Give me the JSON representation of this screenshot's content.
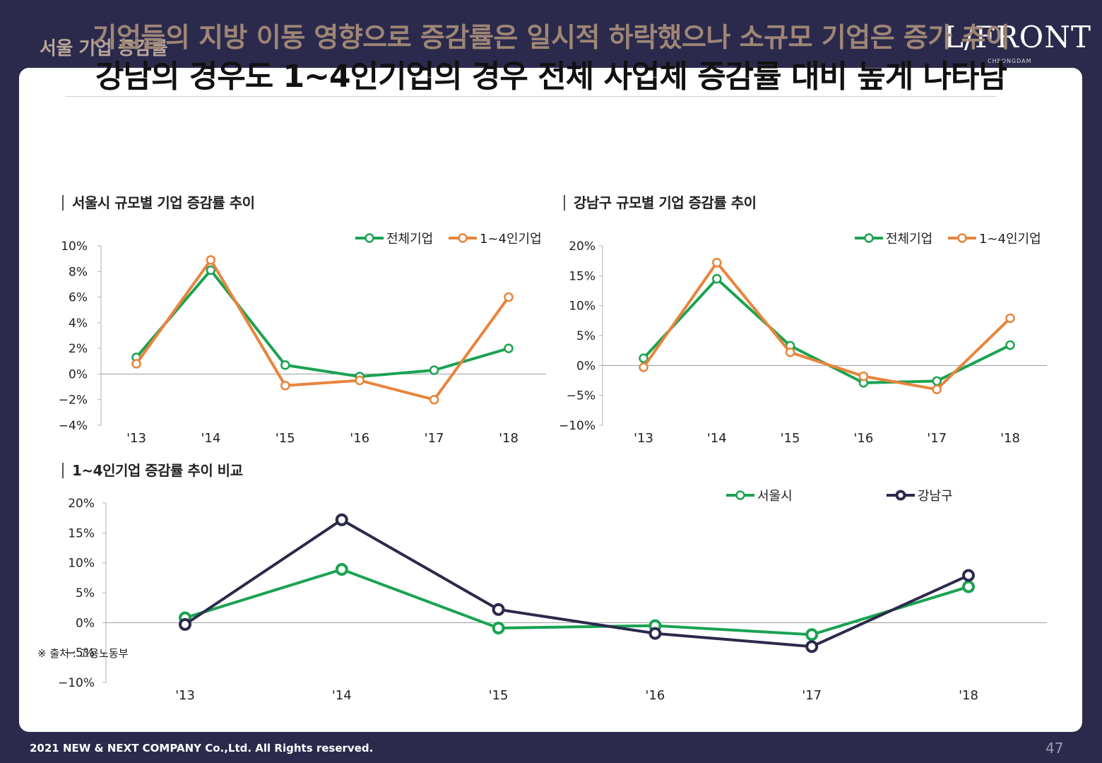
{
  "header": {
    "title": "서울 기업 증감률",
    "logo_text": "L/FRONT",
    "logo_sub": "CHEONGDAM"
  },
  "headline": {
    "sub": "기업들의 지방 이동 영향으로 증감률은 일시적 하락했으나 소규모 기업은 증가 추이",
    "main": "강남의 경우도 1~4인기업의 경우 전체 사업체 증감률 대비 높게 나타남"
  },
  "sections": {
    "seoul_title": "서울시 규모별 기업 증감률 추이",
    "gangnam_title": "강남구 규모별 기업 증감률 추이",
    "compare_title": "1~4인기업 증감률 추이 비교"
  },
  "colors": {
    "green": "#1aa251",
    "orange": "#e8843c",
    "navy": "#2b2a4c",
    "axis": "#999999"
  },
  "chart_data": [
    {
      "type": "line",
      "title": "서울시 규모별 기업 증감률 추이",
      "categories": [
        "'13",
        "'14",
        "'15",
        "'16",
        "'17",
        "'18"
      ],
      "ylim": [
        -4,
        10
      ],
      "yticks": [
        -4,
        -2,
        0,
        2,
        4,
        6,
        8,
        10
      ],
      "yunit": "%",
      "legend": "top-right",
      "series": [
        {
          "name": "전체기업",
          "color": "#1aa251",
          "values": [
            1.3,
            8.1,
            0.7,
            -0.2,
            0.3,
            2.0
          ]
        },
        {
          "name": "1~4인기업",
          "color": "#e8843c",
          "values": [
            0.8,
            8.9,
            -0.9,
            -0.5,
            -2.0,
            6.0
          ]
        }
      ]
    },
    {
      "type": "line",
      "title": "강남구 규모별 기업 증감률 추이",
      "categories": [
        "'13",
        "'14",
        "'15",
        "'16",
        "'17",
        "'18"
      ],
      "ylim": [
        -10,
        20
      ],
      "yticks": [
        -10,
        -5,
        0,
        5,
        10,
        15,
        20
      ],
      "yunit": "%",
      "legend": "top-right",
      "series": [
        {
          "name": "전체기업",
          "color": "#1aa251",
          "values": [
            1.2,
            14.5,
            3.3,
            -2.9,
            -2.6,
            3.4
          ]
        },
        {
          "name": "1~4인기업",
          "color": "#e8843c",
          "values": [
            -0.3,
            17.2,
            2.2,
            -1.8,
            -4.0,
            7.9
          ]
        }
      ]
    },
    {
      "type": "line",
      "title": "1~4인기업 증감률 추이 비교",
      "categories": [
        "'13",
        "'14",
        "'15",
        "'16",
        "'17",
        "'18"
      ],
      "ylim": [
        -10,
        20
      ],
      "yticks": [
        -10,
        -5,
        0,
        5,
        10,
        15,
        20
      ],
      "yunit": "%",
      "legend": "top-right",
      "series": [
        {
          "name": "서울시",
          "color": "#1aa251",
          "values": [
            0.8,
            8.9,
            -0.9,
            -0.5,
            -2.0,
            6.0
          ]
        },
        {
          "name": "강남구",
          "color": "#2b2a4c",
          "values": [
            -0.3,
            17.2,
            2.2,
            -1.8,
            -4.0,
            7.9
          ]
        }
      ]
    }
  ],
  "footer": {
    "source": "※ 출처 : 고용노동부",
    "copyright": "2021 NEW & NEXT COMPANY Co.,Ltd. All Rights reserved.",
    "page_number": "47"
  }
}
